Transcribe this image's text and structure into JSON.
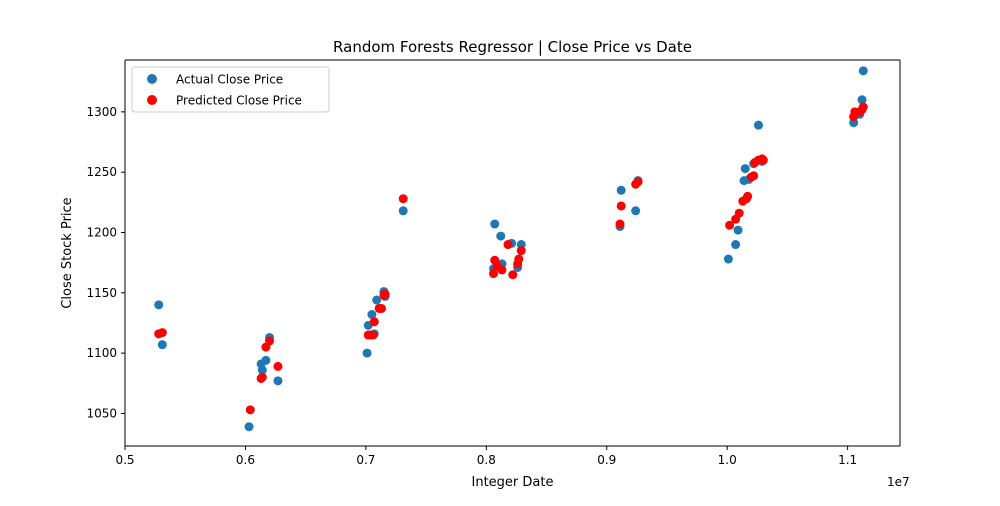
{
  "chart_data": {
    "type": "scatter",
    "title": "Random Forests Regressor | Close Price vs Date",
    "xlabel": "Integer Date",
    "ylabel": "Close Stock Price",
    "x_offset_label": "1e7",
    "xlim": [
      0.5,
      1.1435
    ],
    "ylim": [
      1023,
      1343
    ],
    "xticks": [
      0.5,
      0.6,
      0.7,
      0.8,
      0.9,
      1.0,
      1.1
    ],
    "xtick_labels": [
      "0.5",
      "0.6",
      "0.7",
      "0.8",
      "0.9",
      "1.0",
      "1.1"
    ],
    "yticks": [
      1050,
      1100,
      1150,
      1200,
      1250,
      1300
    ],
    "ytick_labels": [
      "1050",
      "1100",
      "1150",
      "1200",
      "1250",
      "1300"
    ],
    "grid": false,
    "legend_position": "top-left",
    "series": [
      {
        "name": "Actual Close Price",
        "color": "#1f77b4",
        "points": [
          [
            0.528,
            1140
          ],
          [
            0.531,
            1107
          ],
          [
            0.603,
            1039
          ],
          [
            0.613,
            1091
          ],
          [
            0.614,
            1086
          ],
          [
            0.617,
            1094
          ],
          [
            0.62,
            1113
          ],
          [
            0.627,
            1077
          ],
          [
            0.701,
            1100
          ],
          [
            0.702,
            1123
          ],
          [
            0.705,
            1132
          ],
          [
            0.707,
            1116
          ],
          [
            0.709,
            1144
          ],
          [
            0.715,
            1151
          ],
          [
            0.716,
            1147
          ],
          [
            0.731,
            1218
          ],
          [
            0.806,
            1170
          ],
          [
            0.807,
            1207
          ],
          [
            0.812,
            1197
          ],
          [
            0.813,
            1174
          ],
          [
            0.821,
            1191
          ],
          [
            0.826,
            1171
          ],
          [
            0.829,
            1190
          ],
          [
            0.911,
            1205
          ],
          [
            0.912,
            1235
          ],
          [
            0.924,
            1218
          ],
          [
            0.926,
            1243
          ],
          [
            1.001,
            1178
          ],
          [
            1.007,
            1190
          ],
          [
            1.009,
            1202
          ],
          [
            1.014,
            1243
          ],
          [
            1.015,
            1253
          ],
          [
            1.018,
            1244
          ],
          [
            1.022,
            1257
          ],
          [
            1.026,
            1289
          ],
          [
            1.029,
            1259
          ],
          [
            1.105,
            1291
          ],
          [
            1.11,
            1298
          ],
          [
            1.112,
            1310
          ],
          [
            1.113,
            1334
          ]
        ]
      },
      {
        "name": "Predicted Close Price",
        "color": "#ff0000",
        "points": [
          [
            0.528,
            1116
          ],
          [
            0.531,
            1117
          ],
          [
            0.604,
            1053
          ],
          [
            0.613,
            1079
          ],
          [
            0.614,
            1080
          ],
          [
            0.617,
            1105
          ],
          [
            0.62,
            1110
          ],
          [
            0.627,
            1089
          ],
          [
            0.702,
            1115
          ],
          [
            0.704,
            1115
          ],
          [
            0.706,
            1115
          ],
          [
            0.707,
            1126
          ],
          [
            0.711,
            1137
          ],
          [
            0.713,
            1137
          ],
          [
            0.715,
            1148
          ],
          [
            0.716,
            1149
          ],
          [
            0.731,
            1228
          ],
          [
            0.806,
            1166
          ],
          [
            0.807,
            1177
          ],
          [
            0.809,
            1172
          ],
          [
            0.813,
            1169
          ],
          [
            0.818,
            1190
          ],
          [
            0.822,
            1165
          ],
          [
            0.826,
            1174
          ],
          [
            0.827,
            1178
          ],
          [
            0.829,
            1185
          ],
          [
            0.911,
            1207
          ],
          [
            0.912,
            1222
          ],
          [
            0.924,
            1240
          ],
          [
            0.926,
            1242
          ],
          [
            1.002,
            1206
          ],
          [
            1.007,
            1211
          ],
          [
            1.01,
            1216
          ],
          [
            1.013,
            1226
          ],
          [
            1.016,
            1228
          ],
          [
            1.017,
            1230
          ],
          [
            1.02,
            1246
          ],
          [
            1.022,
            1247
          ],
          [
            1.023,
            1258
          ],
          [
            1.026,
            1260
          ],
          [
            1.029,
            1261
          ],
          [
            1.03,
            1260
          ],
          [
            1.105,
            1296
          ],
          [
            1.106,
            1300
          ],
          [
            1.11,
            1300
          ],
          [
            1.112,
            1302
          ],
          [
            1.113,
            1304
          ]
        ]
      }
    ]
  }
}
